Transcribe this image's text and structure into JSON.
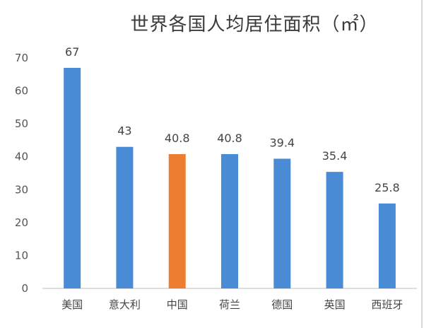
{
  "chart_data": {
    "type": "bar",
    "title": "世界各国人均居住面积（㎡）",
    "categories": [
      "美国",
      "意大利",
      "中国",
      "荷兰",
      "德国",
      "英国",
      "西班牙"
    ],
    "values": [
      67,
      43,
      40.8,
      40.8,
      39.4,
      35.4,
      25.8
    ],
    "data_labels": [
      "67",
      "43",
      "40.8",
      "40.8",
      "39.4",
      "35.4",
      "25.8"
    ],
    "ylim": [
      0,
      70
    ],
    "yticks": [
      "0",
      "10",
      "20",
      "30",
      "40",
      "50",
      "60",
      "70"
    ],
    "grid": false,
    "colors": {
      "default": "#4a8bd6",
      "highlight": "#ed7d31",
      "axis": "#bfbfbf"
    },
    "highlight_index": 2
  }
}
